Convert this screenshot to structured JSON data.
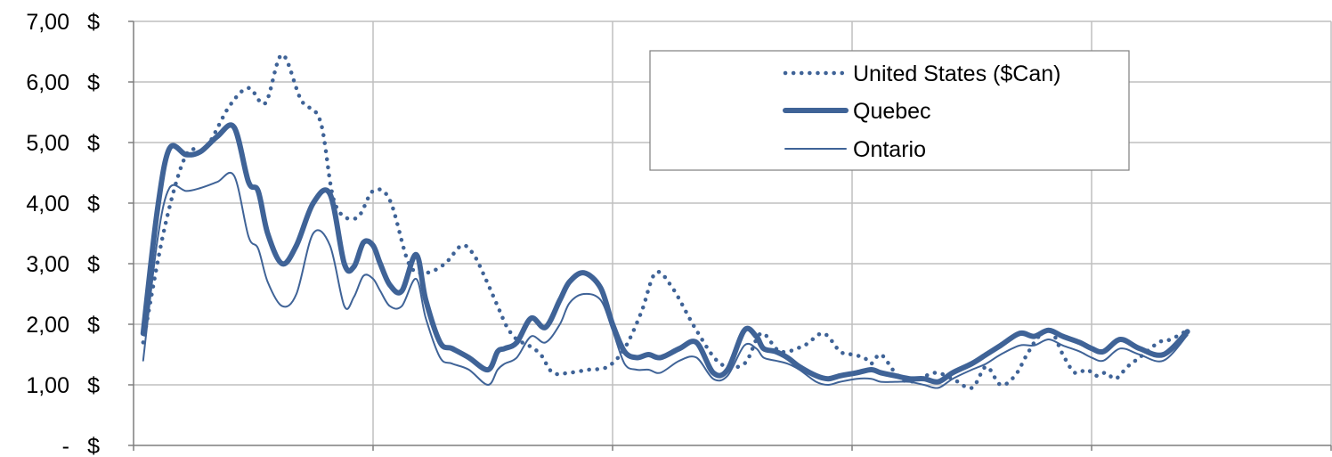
{
  "chart_data": {
    "type": "line",
    "title": "",
    "xlabel": "",
    "ylabel": "",
    "ylim": [
      0,
      7
    ],
    "x_ticks": 5,
    "y_tick_labels": [
      "-",
      "1,00",
      "2,00",
      "3,00",
      "4,00",
      "5,00",
      "6,00",
      "7,00"
    ],
    "currency_symbol": "$",
    "grid": true,
    "legend_position": "top-right",
    "series": [
      {
        "name": "United States ($Can)",
        "style": "dotted",
        "color": "#3F6397",
        "x": [
          0.04,
          0.13,
          0.22,
          0.3,
          0.4,
          0.48,
          0.55,
          0.62,
          0.7,
          0.78,
          0.84,
          0.93,
          1.0,
          1.07,
          1.15,
          1.22,
          1.3,
          1.37,
          1.42,
          1.47,
          1.52,
          1.56,
          1.6,
          1.65,
          1.7,
          1.75,
          1.82,
          1.9,
          1.98,
          2.05,
          2.12,
          2.18,
          2.25,
          2.35,
          2.45,
          2.55,
          2.62,
          2.7,
          2.8,
          2.88,
          2.95,
          3.0,
          3.05,
          3.08,
          3.12,
          3.18,
          3.23,
          3.28,
          3.35,
          3.42,
          3.5,
          3.56,
          3.62,
          3.68,
          3.73,
          3.78,
          3.83,
          3.88,
          3.93,
          3.98,
          4.02,
          4.06,
          4.1,
          4.15,
          4.2,
          4.28,
          4.33,
          4.4
        ],
        "y": [
          1.7,
          3.6,
          4.8,
          4.9,
          5.6,
          5.9,
          5.65,
          6.45,
          5.7,
          5.35,
          4.0,
          3.75,
          4.2,
          4.05,
          3.0,
          2.85,
          3.0,
          3.3,
          3.15,
          2.75,
          2.3,
          1.95,
          1.75,
          1.65,
          1.5,
          1.2,
          1.2,
          1.25,
          1.3,
          1.6,
          2.2,
          2.85,
          2.6,
          1.9,
          1.35,
          1.35,
          1.85,
          1.55,
          1.65,
          1.85,
          1.55,
          1.5,
          1.45,
          1.35,
          1.5,
          1.2,
          1.05,
          1.1,
          1.2,
          1.1,
          0.95,
          1.3,
          1.0,
          1.15,
          1.5,
          1.8,
          1.9,
          1.5,
          1.2,
          1.25,
          1.15,
          1.2,
          1.1,
          1.3,
          1.45,
          1.7,
          1.75,
          1.9
        ]
      },
      {
        "name": "Quebec",
        "style": "thick",
        "color": "#3F6397",
        "x": [
          0.04,
          0.1,
          0.15,
          0.22,
          0.28,
          0.35,
          0.42,
          0.48,
          0.52,
          0.56,
          0.62,
          0.68,
          0.75,
          0.82,
          0.88,
          0.92,
          0.96,
          1.0,
          1.03,
          1.07,
          1.12,
          1.18,
          1.22,
          1.28,
          1.33,
          1.4,
          1.48,
          1.52,
          1.55,
          1.6,
          1.66,
          1.72,
          1.78,
          1.82,
          1.88,
          1.95,
          2.0,
          2.05,
          2.1,
          2.15,
          2.2,
          2.28,
          2.35,
          2.42,
          2.48,
          2.55,
          2.6,
          2.63,
          2.68,
          2.73,
          2.78,
          2.85,
          2.9,
          2.95,
          3.02,
          3.08,
          3.12,
          3.18,
          3.24,
          3.3,
          3.36,
          3.42,
          3.5,
          3.56,
          3.62,
          3.7,
          3.76,
          3.82,
          3.88,
          3.95,
          4.0,
          4.05,
          4.12,
          4.2,
          4.3,
          4.4
        ],
        "y": [
          1.85,
          3.9,
          4.9,
          4.8,
          4.85,
          5.1,
          5.25,
          4.35,
          4.2,
          3.5,
          3.0,
          3.3,
          4.0,
          4.15,
          3.0,
          2.95,
          3.35,
          3.3,
          3.0,
          2.65,
          2.55,
          3.15,
          2.4,
          1.7,
          1.6,
          1.45,
          1.25,
          1.55,
          1.6,
          1.7,
          2.1,
          1.95,
          2.4,
          2.7,
          2.85,
          2.6,
          2.0,
          1.55,
          1.45,
          1.5,
          1.45,
          1.6,
          1.7,
          1.2,
          1.25,
          1.9,
          1.8,
          1.6,
          1.55,
          1.45,
          1.3,
          1.15,
          1.1,
          1.15,
          1.2,
          1.25,
          1.2,
          1.15,
          1.1,
          1.1,
          1.05,
          1.2,
          1.35,
          1.5,
          1.65,
          1.85,
          1.8,
          1.9,
          1.8,
          1.7,
          1.6,
          1.55,
          1.75,
          1.6,
          1.5,
          1.88
        ]
      },
      {
        "name": "Ontario",
        "style": "thin",
        "color": "#3F6397",
        "x": [
          0.04,
          0.1,
          0.15,
          0.22,
          0.28,
          0.35,
          0.42,
          0.48,
          0.52,
          0.56,
          0.62,
          0.68,
          0.75,
          0.82,
          0.88,
          0.92,
          0.96,
          1.0,
          1.03,
          1.07,
          1.12,
          1.18,
          1.22,
          1.28,
          1.33,
          1.4,
          1.48,
          1.52,
          1.55,
          1.6,
          1.66,
          1.72,
          1.78,
          1.82,
          1.88,
          1.95,
          2.0,
          2.05,
          2.1,
          2.15,
          2.2,
          2.28,
          2.35,
          2.42,
          2.48,
          2.55,
          2.6,
          2.63,
          2.68,
          2.73,
          2.78,
          2.85,
          2.9,
          2.95,
          3.02,
          3.08,
          3.12,
          3.18,
          3.24,
          3.3,
          3.36,
          3.42,
          3.5,
          3.56,
          3.62,
          3.7,
          3.76,
          3.82,
          3.88,
          3.95,
          4.0,
          4.05,
          4.12,
          4.2,
          4.3,
          4.4
        ],
        "y": [
          1.4,
          3.4,
          4.25,
          4.2,
          4.25,
          4.35,
          4.45,
          3.45,
          3.25,
          2.7,
          2.3,
          2.5,
          3.5,
          3.3,
          2.3,
          2.45,
          2.8,
          2.75,
          2.55,
          2.3,
          2.3,
          2.75,
          2.1,
          1.45,
          1.35,
          1.25,
          1.0,
          1.25,
          1.35,
          1.45,
          1.8,
          1.7,
          2.0,
          2.35,
          2.5,
          2.4,
          1.9,
          1.35,
          1.25,
          1.25,
          1.2,
          1.4,
          1.45,
          1.1,
          1.15,
          1.65,
          1.6,
          1.45,
          1.4,
          1.35,
          1.25,
          1.05,
          1.0,
          1.05,
          1.1,
          1.1,
          1.05,
          1.05,
          1.05,
          1.0,
          0.95,
          1.1,
          1.25,
          1.35,
          1.5,
          1.65,
          1.65,
          1.75,
          1.65,
          1.55,
          1.45,
          1.4,
          1.6,
          1.5,
          1.4,
          1.82
        ]
      }
    ]
  }
}
